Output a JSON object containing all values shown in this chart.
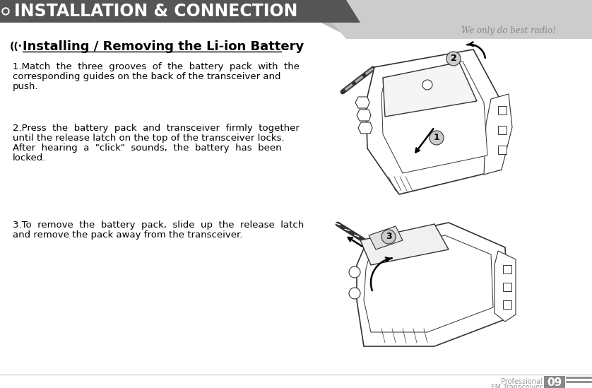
{
  "background_color": "#ffffff",
  "header_bg_color": "#555555",
  "header_text": "INSTALLATION & CONNECTION",
  "header_text_color": "#ffffff",
  "header_font_size": 17,
  "tagline": "We only do best radio!",
  "tagline_color": "#888888",
  "section_title": "Installing / Removing the Li-ion Battery",
  "section_title_fontsize": 13,
  "section_title_color": "#000000",
  "body_text_color": "#000000",
  "body_fontsize": 9.5,
  "para1_line1": "1.Match  the  three  grooves  of  the  battery  pack  with  the",
  "para1_line2": "corresponding guides on the back of the transceiver and",
  "para1_line3": "push.",
  "para2_line1": "2.Press  the  battery  pack  and  transceiver  firmly  together",
  "para2_line2": "until the release latch on the top of the transceiver locks.",
  "para2_line3": "After  hearing  a  \"click\"  sounds,  the  battery  has  been",
  "para2_line4": "locked.",
  "para3_line1": "3.To  remove  the  battery  pack,  slide  up  the  release  latch",
  "para3_line2": "and remove the pack away from the transceiver.",
  "footer_text1": "Professional",
  "footer_text2": "FM Transceiver",
  "footer_number": "09",
  "footer_color": "#999999",
  "footer_number_bg": "#888888",
  "footer_number_color": "#ffffff",
  "draw_color": "#333333",
  "label_circle_color": "#cccccc"
}
